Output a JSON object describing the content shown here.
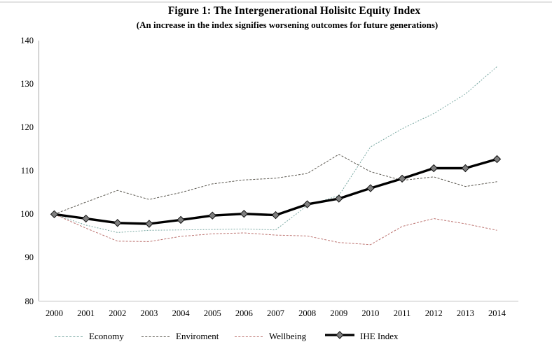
{
  "chart_data": {
    "type": "line",
    "title": "Figure 1: The Intergenerational Holisitc Equity Index",
    "subtitle": "(An increase in the index signifies worsening outcomes for future generations)",
    "xlabel": "",
    "ylabel": "",
    "x": [
      2000,
      2001,
      2002,
      2003,
      2004,
      2005,
      2006,
      2007,
      2008,
      2009,
      2010,
      2011,
      2012,
      2013,
      2014
    ],
    "ylim": [
      80,
      140
    ],
    "yticks": [
      80,
      90,
      100,
      110,
      120,
      130,
      140
    ],
    "grid": false,
    "legend_position": "bottom",
    "series": [
      {
        "name": "Economy",
        "color": "#7aa9a3",
        "style": "fine-dash",
        "values": [
          100,
          97.5,
          95.8,
          96.3,
          96.4,
          96.5,
          96.6,
          96.4,
          102,
          104.3,
          115.5,
          119.7,
          123.2,
          127.7,
          134
        ]
      },
      {
        "name": "Enviroment",
        "color": "#5a574f",
        "style": "dash",
        "values": [
          100,
          102.8,
          105.5,
          103.4,
          105,
          107,
          107.9,
          108.3,
          109.4,
          113.8,
          109.8,
          107.8,
          108.6,
          106.4,
          107.5
        ]
      },
      {
        "name": "Wellbeing",
        "color": "#bd7471",
        "style": "dash",
        "values": [
          100,
          96.8,
          93.8,
          93.7,
          94.9,
          95.5,
          95.7,
          95.2,
          95,
          93.5,
          93,
          97.2,
          99,
          97.8,
          96.3
        ]
      },
      {
        "name": "IHE Index",
        "color": "#000000",
        "style": "solid-diamond",
        "marker_fill": "#7f7f7f",
        "values": [
          100,
          99,
          98,
          97.8,
          98.7,
          99.7,
          100.1,
          99.8,
          102.3,
          103.6,
          106,
          108.2,
          110.6,
          110.6,
          112.7
        ]
      }
    ],
    "axis_colors": {
      "y_axis": "#a6a6a6",
      "x_axis": "#bfbfbf"
    }
  }
}
